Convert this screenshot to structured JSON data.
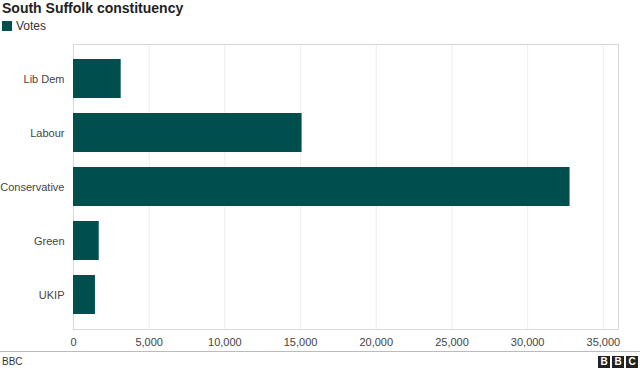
{
  "chart_data": {
    "type": "bar",
    "orientation": "horizontal",
    "title": "South Suffolk constituency",
    "categories": [
      "Lib Dem",
      "Labour",
      "Conservative",
      "Green",
      "UKIP"
    ],
    "series": [
      {
        "name": "Votes",
        "color": "#004f4f",
        "values": [
          3150,
          15100,
          32800,
          1700,
          1450
        ]
      }
    ],
    "legend": "top-left",
    "xlim": [
      0,
      36000
    ],
    "xticks": [
      0,
      {
        "value": 5000,
        "label": "5,000"
      },
      {
        "value": 10000,
        "label": "10,000"
      },
      {
        "value": 15000,
        "label": "15,000"
      },
      {
        "value": 20000,
        "label": "20,000"
      },
      {
        "value": 25000,
        "label": "25,000"
      },
      {
        "value": 30000,
        "label": "30,000"
      },
      {
        "value": 35000,
        "label": "35,000"
      }
    ],
    "grid": true,
    "source": "BBC",
    "logo": "BBC"
  }
}
